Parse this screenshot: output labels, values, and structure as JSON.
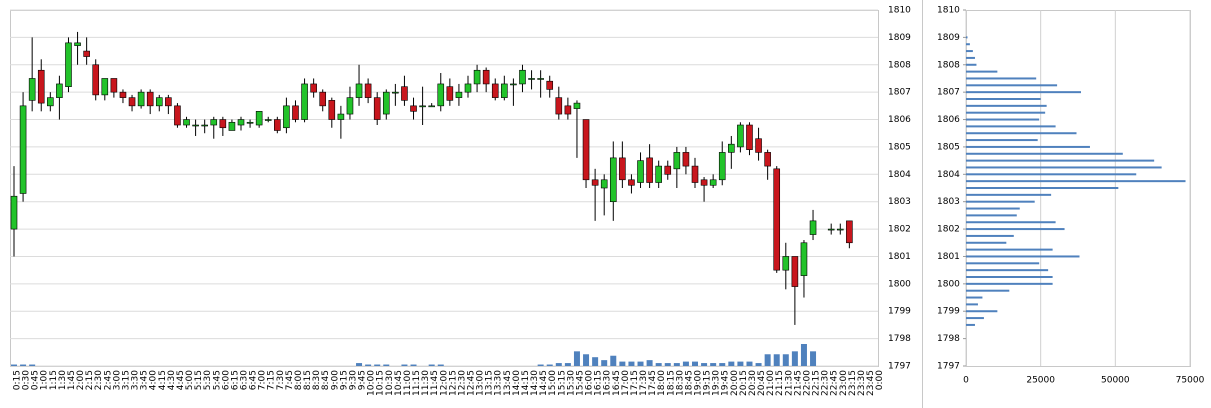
{
  "chart_data": [
    {
      "type": "candlestick",
      "categories": [
        "0:15",
        "0:30",
        "0:45",
        "1:00",
        "1:15",
        "1:30",
        "1:45",
        "2:00",
        "2:15",
        "2:30",
        "2:45",
        "3:00",
        "3:15",
        "3:30",
        "3:45",
        "4:00",
        "4:15",
        "4:30",
        "4:45",
        "5:00",
        "5:15",
        "5:30",
        "5:45",
        "6:00",
        "6:15",
        "6:30",
        "6:45",
        "7:00",
        "7:15",
        "7:30",
        "7:45",
        "8:00",
        "8:15",
        "8:30",
        "8:45",
        "9:00",
        "9:15",
        "9:30",
        "9:45",
        "10:00",
        "10:15",
        "10:30",
        "10:45",
        "11:00",
        "11:15",
        "11:30",
        "11:45",
        "12:00",
        "12:15",
        "12:30",
        "12:45",
        "13:00",
        "13:15",
        "13:30",
        "13:45",
        "14:00",
        "14:15",
        "14:30",
        "14:45",
        "15:00",
        "15:15",
        "15:30",
        "15:45",
        "16:00",
        "16:15",
        "16:30",
        "16:45",
        "17:00",
        "17:15",
        "17:30",
        "17:45",
        "18:00",
        "18:15",
        "18:30",
        "18:45",
        "19:00",
        "19:15",
        "19:30",
        "19:45",
        "20:00",
        "20:15",
        "20:30",
        "20:45",
        "21:00",
        "21:15",
        "21:30",
        "21:45",
        "22:00",
        "22:15",
        "22:30",
        "22:45",
        "23:00",
        "23:15",
        "23:30",
        "23:45",
        "0:00"
      ],
      "open": [
        1802,
        1803.3,
        1806.7,
        1807.8,
        1806.5,
        1806.8,
        1807.2,
        1808.7,
        1808.5,
        1808,
        1806.9,
        1807.5,
        1807,
        1806.8,
        1806.5,
        1807,
        1806.5,
        1806.8,
        1806.5,
        1805.8,
        1805.8,
        1805.8,
        1805.8,
        1806,
        1805.6,
        1805.8,
        1805.9,
        1805.8,
        1806,
        1806,
        1805.7,
        1806.5,
        1806,
        1807.3,
        1807,
        1806.7,
        1806,
        1806.2,
        1806.8,
        1807.3,
        1806.8,
        1806.2,
        1807,
        1807.2,
        1806.5,
        1806.5,
        1806.5,
        1806.5,
        1807.2,
        1806.8,
        1807,
        1807.3,
        1807.8,
        1807.3,
        1806.8,
        1807.3,
        1807.3,
        1807.5,
        1807.5,
        1807.4,
        1806.8,
        1806.5,
        1806.4,
        1806,
        1803.8,
        1803.5,
        1803,
        1804.6,
        1803.8,
        1803.7,
        1804.6,
        1803.7,
        1804.3,
        1804.2,
        1804.8,
        1804.3,
        1803.8,
        1803.6,
        1803.8,
        1804.8,
        1805,
        1805.8,
        1805.3,
        1804.8,
        1804.2,
        1800.5,
        1801,
        1800.3,
        1801.8,
        null,
        1802,
        1802,
        1802.3,
        null,
        null,
        null
      ],
      "high": [
        1804.3,
        1807,
        1809,
        1808.2,
        1807,
        1807.6,
        1809,
        1809.2,
        1809,
        1808.2,
        1807.5,
        1807.5,
        1807.1,
        1806.9,
        1807.1,
        1807.1,
        1806.9,
        1806.9,
        1806.6,
        1806.1,
        1806,
        1806,
        1806.1,
        1806.1,
        1806,
        1806.1,
        1806,
        1806.3,
        1806.1,
        1806.1,
        1806.8,
        1806.7,
        1807.5,
        1807.5,
        1807.1,
        1806.8,
        1806.5,
        1807.2,
        1808,
        1807.5,
        1807,
        1807.1,
        1807.3,
        1807.6,
        1806.8,
        1807.2,
        1806.6,
        1807.7,
        1807.5,
        1807.3,
        1807.6,
        1808,
        1807.9,
        1807.5,
        1807.6,
        1807.5,
        1808,
        1807.8,
        1807.8,
        1807.6,
        1807.2,
        1806.8,
        1806.7,
        1806,
        1804.2,
        1804,
        1805.2,
        1805.2,
        1804,
        1804.8,
        1805.1,
        1804.5,
        1804.5,
        1805,
        1805,
        1804.6,
        1803.9,
        1804,
        1805.2,
        1805.4,
        1805.9,
        1805.9,
        1805.7,
        1804.9,
        1804.3,
        1801.5,
        1801,
        1801.6,
        1802.7,
        null,
        1802.2,
        1802.2,
        1802.3,
        null,
        null,
        null
      ],
      "low": [
        1801,
        1803,
        1806.3,
        1806.3,
        1806.3,
        1806,
        1807,
        1808,
        1808,
        1806.7,
        1806.7,
        1806.8,
        1806.6,
        1806.3,
        1806.4,
        1806.2,
        1806.3,
        1806.2,
        1805.7,
        1805.7,
        1805.4,
        1805.5,
        1805.3,
        1805.4,
        1805.6,
        1805.6,
        1805.7,
        1805.7,
        1805.9,
        1805.5,
        1805.5,
        1805.9,
        1805.9,
        1806.8,
        1806.3,
        1805.7,
        1805.3,
        1806,
        1806.5,
        1806.6,
        1805.8,
        1806,
        1806.5,
        1806.5,
        1806,
        1805.8,
        1806.5,
        1806.3,
        1806.5,
        1806.5,
        1806.8,
        1807,
        1807,
        1806.7,
        1806.7,
        1806.5,
        1807,
        1807.1,
        1806.8,
        1806.8,
        1806,
        1806,
        1804.6,
        1803.5,
        1802.3,
        1802.5,
        1802.3,
        1803.5,
        1803.3,
        1803.5,
        1803.5,
        1803.5,
        1803.8,
        1803.5,
        1804,
        1803.5,
        1803,
        1803.5,
        1803.6,
        1804.2,
        1804.8,
        1804.7,
        1804.5,
        1803.8,
        1800.4,
        1799.8,
        1798.5,
        1799.5,
        1801.6,
        null,
        1801.8,
        1801.8,
        1801.3,
        null,
        null,
        null
      ],
      "close": [
        1803.2,
        1806.5,
        1807.5,
        1806.6,
        1806.8,
        1807.3,
        1808.8,
        1808.8,
        1808.3,
        1806.9,
        1807.5,
        1807,
        1806.8,
        1806.5,
        1807,
        1806.5,
        1806.8,
        1806.5,
        1805.8,
        1806,
        1805.8,
        1805.8,
        1806,
        1805.7,
        1805.9,
        1806,
        1805.9,
        1806.3,
        1806,
        1805.6,
        1806.5,
        1806,
        1807.3,
        1807,
        1806.5,
        1806,
        1806.2,
        1806.8,
        1807.3,
        1806.8,
        1806,
        1807,
        1807,
        1806.7,
        1806.3,
        1806.5,
        1806.5,
        1807.3,
        1806.7,
        1807,
        1807.3,
        1807.8,
        1807.3,
        1806.8,
        1807.3,
        1807.3,
        1807.8,
        1807.5,
        1807.5,
        1807.1,
        1806.2,
        1806.2,
        1806.6,
        1803.8,
        1803.6,
        1803.8,
        1804.6,
        1803.8,
        1803.6,
        1804.5,
        1803.7,
        1804.3,
        1804,
        1804.8,
        1804.3,
        1803.7,
        1803.6,
        1803.8,
        1804.8,
        1805.1,
        1805.8,
        1804.9,
        1804.8,
        1804.3,
        1800.5,
        1801,
        1799.9,
        1801.5,
        1802.3,
        null,
        1802,
        1802,
        1801.5,
        null,
        null,
        null
      ],
      "volume": [
        1,
        1,
        1,
        0,
        0,
        0,
        0,
        0,
        0,
        0,
        0,
        0,
        0,
        0,
        0,
        0,
        0,
        0,
        0,
        0,
        0,
        0,
        0,
        0,
        0,
        0,
        0,
        0,
        0,
        0,
        0,
        0,
        0,
        0,
        0,
        0,
        0,
        0,
        2,
        1,
        1,
        1,
        0,
        1,
        1,
        0,
        1,
        1,
        0,
        0,
        0,
        0,
        0,
        0,
        0,
        0,
        0,
        0,
        1,
        1,
        2,
        2,
        10,
        8,
        6,
        4,
        7,
        3,
        3,
        3,
        4,
        2,
        2,
        2,
        3,
        3,
        2,
        2,
        2,
        3,
        3,
        3,
        2,
        8,
        8,
        8,
        10,
        15,
        10,
        0,
        0,
        0,
        0,
        0,
        0,
        0
      ],
      "up_color": "#22c32a",
      "down_color": "#c8161d",
      "volume_color": "#4f81bd",
      "ylim": [
        1797,
        1810
      ],
      "yticks": [
        1797,
        1798,
        1799,
        1800,
        1801,
        1802,
        1803,
        1804,
        1805,
        1806,
        1807,
        1808,
        1809,
        1810
      ],
      "grid": true
    },
    {
      "type": "bar",
      "orientation": "horizontal",
      "y": [
        1809,
        1808.75,
        1808.5,
        1808.25,
        1808,
        1807.75,
        1807.5,
        1807.25,
        1807,
        1806.75,
        1806.5,
        1806.25,
        1806,
        1805.75,
        1805.5,
        1805.25,
        1805,
        1804.75,
        1804.5,
        1804.25,
        1804,
        1803.75,
        1803.5,
        1803.25,
        1803,
        1802.75,
        1802.5,
        1802.25,
        1802,
        1801.75,
        1801.5,
        1801.25,
        1801,
        1800.75,
        1800.5,
        1800.25,
        1800,
        1799.75,
        1799.5,
        1799.25,
        1799,
        1798.75,
        1798.5
      ],
      "values": [
        500,
        1300,
        2300,
        3000,
        3500,
        10500,
        23500,
        30500,
        38500,
        25000,
        27000,
        26500,
        24500,
        30000,
        37000,
        24000,
        41500,
        52500,
        63000,
        65500,
        57000,
        73500,
        51000,
        28500,
        23000,
        18000,
        17000,
        30000,
        33000,
        16000,
        13500,
        29000,
        38000,
        24500,
        27500,
        29000,
        29000,
        14500,
        5500,
        4000,
        10500,
        6000,
        3000
      ],
      "color": "#4f81bd",
      "xlim": [
        0,
        75000
      ],
      "xticks": [
        0,
        25000,
        50000,
        75000
      ],
      "ylim": [
        1797,
        1810
      ],
      "yticks": [
        1797,
        1798,
        1799,
        1800,
        1801,
        1802,
        1803,
        1804,
        1805,
        1806,
        1807,
        1808,
        1809,
        1810
      ],
      "grid": true
    }
  ]
}
